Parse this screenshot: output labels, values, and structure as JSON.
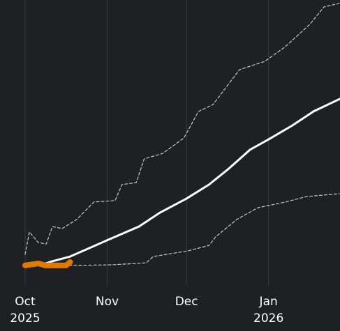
{
  "chart_data": {
    "type": "line",
    "xlim": [
      -9.5,
      119
    ],
    "ylim": [
      0,
      100
    ],
    "xticks": [
      {
        "value": 0,
        "label": "Oct\n2025"
      },
      {
        "value": 31,
        "label": "Nov"
      },
      {
        "value": 61,
        "label": "Dec"
      },
      {
        "value": 92,
        "label": "Jan\n2026"
      }
    ],
    "grid": true,
    "series": [
      {
        "color": "#c8c8c8",
        "style": "dashed",
        "linewidth": 1.2,
        "x": [
          0,
          1.6,
          5,
          8,
          10.3,
          14,
          19.5,
          26,
          34,
          36.6,
          42,
          45,
          52,
          60,
          65.5,
          71,
          81,
          90.5,
          98,
          107.6,
          113,
          118.7
        ],
        "values": [
          11,
          18.8,
          15.1,
          14.6,
          20.7,
          20,
          23.2,
          29.3,
          29.8,
          35.4,
          36.1,
          44.4,
          46.3,
          51.7,
          61,
          63.4,
          75.6,
          78.5,
          83.4,
          91.5,
          97.6,
          98.8
        ]
      },
      {
        "color": "#c8c8c8",
        "style": "dashed",
        "linewidth": 1.2,
        "x": [
          0,
          17,
          32.6,
          45.8,
          48.4,
          61.6,
          69.5,
          72,
          80,
          88,
          98.4,
          106.3,
          118.7
        ],
        "values": [
          7.1,
          7.1,
          7.3,
          8,
          10.2,
          12.2,
          14.1,
          17.1,
          23.2,
          27.3,
          29.3,
          31.2,
          32.2
        ]
      },
      {
        "color": "#ffffff",
        "style": "solid",
        "linewidth": 3,
        "x": [
          6.3,
          10,
          17,
          31,
          43,
          51,
          61,
          69.5,
          77,
          85,
          92,
          101,
          109,
          119
        ],
        "values": [
          7.3,
          8.5,
          10.2,
          15.9,
          20.7,
          25.6,
          30.5,
          35.4,
          41,
          47.6,
          51.2,
          56.1,
          61,
          65.4
        ]
      },
      {
        "color": "#e07b00",
        "style": "solid",
        "linewidth": 8,
        "x": [
          0,
          5,
          7.6,
          15.5,
          17
        ],
        "values": [
          7.1,
          7.8,
          7.1,
          7.1,
          8.3
        ]
      }
    ]
  }
}
